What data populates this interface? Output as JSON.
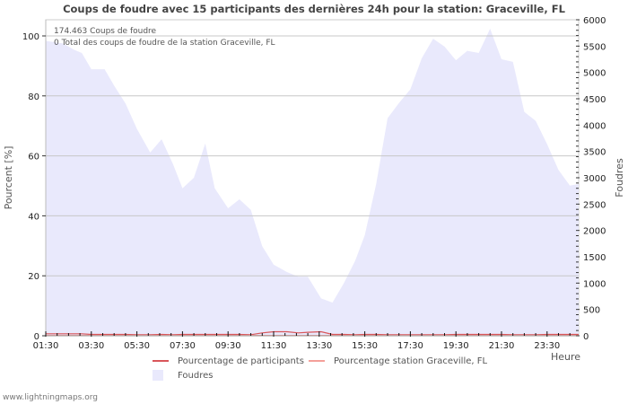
{
  "title": "Coups de foudre avec 15 participants des dernières 24h pour la station: Graceville, FL",
  "info": {
    "line1": "174.463  Coups de foudre",
    "line2": "0 Total des coups de foudre de la station Graceville, FL"
  },
  "axes": {
    "left_title": "Pourcent   [%]",
    "right_title": "Foudres",
    "x_title": "Heure",
    "left_ticks": [
      "0",
      "20",
      "40",
      "60",
      "80",
      "100"
    ],
    "right_ticks": [
      "0",
      "500",
      "1000",
      "1500",
      "2000",
      "2500",
      "3000",
      "3500",
      "4000",
      "4500",
      "5000",
      "5500",
      "6000"
    ],
    "x_ticks": [
      "01:30",
      "03:30",
      "05:30",
      "07:30",
      "09:30",
      "11:30",
      "13:30",
      "15:30",
      "17:30",
      "19:30",
      "21:30",
      "23:30"
    ]
  },
  "legend": {
    "participants": "Pourcentage de participants",
    "station": "Pourcentage station Graceville, FL",
    "strikes": "Foudres"
  },
  "colors": {
    "area": "#e9e9fc",
    "participants": "#d9565a",
    "station": "#f4a09a",
    "grid": "#c8c8c8"
  },
  "footer": "www.lightningmaps.org",
  "chart_data": {
    "type": "area",
    "title": "Coups de foudre avec 15 participants des dernières 24h pour la station: Graceville, FL",
    "xlabel": "Heure",
    "ylabel": "Pourcent [%]",
    "y2label": "Foudres",
    "ylim": [
      0,
      105
    ],
    "y2lim": [
      0,
      6000
    ],
    "grid": true,
    "legend_position": "bottom",
    "x": [
      "01:30",
      "02:15",
      "02:45",
      "03:05",
      "03:30",
      "04:05",
      "04:30",
      "05:00",
      "05:30",
      "06:05",
      "06:35",
      "07:05",
      "07:30",
      "08:00",
      "08:30",
      "08:55",
      "09:30",
      "10:00",
      "10:30",
      "11:00",
      "11:30",
      "12:05",
      "12:35",
      "13:00",
      "13:35",
      "14:05",
      "14:35",
      "15:05",
      "15:30",
      "16:00",
      "16:30",
      "17:00",
      "17:30",
      "18:00",
      "18:30",
      "19:00",
      "19:30",
      "20:00",
      "20:30",
      "21:00",
      "21:30",
      "22:00",
      "22:30",
      "23:00",
      "23:30",
      "00:00",
      "00:30",
      "00:55"
    ],
    "series": [
      {
        "name": "Foudres",
        "axis": "right",
        "values": [
          5600,
          5550,
          5430,
          5370,
          5060,
          5060,
          4750,
          4410,
          3930,
          3480,
          3730,
          3260,
          2800,
          3000,
          3650,
          2800,
          2420,
          2590,
          2390,
          1700,
          1350,
          1210,
          1120,
          1120,
          710,
          630,
          1000,
          1430,
          1910,
          2880,
          4130,
          4420,
          4680,
          5270,
          5640,
          5490,
          5230,
          5410,
          5370,
          5830,
          5250,
          5200,
          4250,
          4080,
          3640,
          3150,
          2850,
          2880
        ]
      },
      {
        "name": "Pourcentage de participants",
        "axis": "left",
        "values": [
          0.5,
          0.5,
          0.5,
          0.5,
          0.3,
          0.3,
          0.3,
          0.3,
          0.2,
          0.2,
          0.3,
          0.2,
          0.3,
          0.3,
          0.3,
          0.3,
          0.3,
          0.3,
          0.2,
          0.8,
          1.2,
          1.2,
          0.8,
          1.0,
          1.2,
          0.3,
          0.3,
          0.2,
          0.3,
          0.3,
          0.2,
          0.2,
          0.2,
          0.2,
          0.2,
          0.2,
          0.3,
          0.3,
          0.3,
          0.3,
          0.3,
          0.2,
          0.2,
          0.2,
          0.3,
          0.3,
          0.3,
          0.3
        ]
      },
      {
        "name": "Pourcentage station Graceville, FL",
        "axis": "left",
        "values": [
          0,
          0,
          0,
          0,
          0,
          0,
          0,
          0,
          0,
          0,
          0,
          0,
          0,
          0,
          0,
          0,
          0,
          0,
          0,
          0,
          0,
          0,
          0,
          0,
          0,
          0,
          0,
          0,
          0,
          0,
          0,
          0,
          0,
          0,
          0,
          0,
          0,
          0,
          0,
          0,
          0,
          0,
          0,
          0,
          0,
          0,
          0,
          0
        ]
      }
    ]
  }
}
